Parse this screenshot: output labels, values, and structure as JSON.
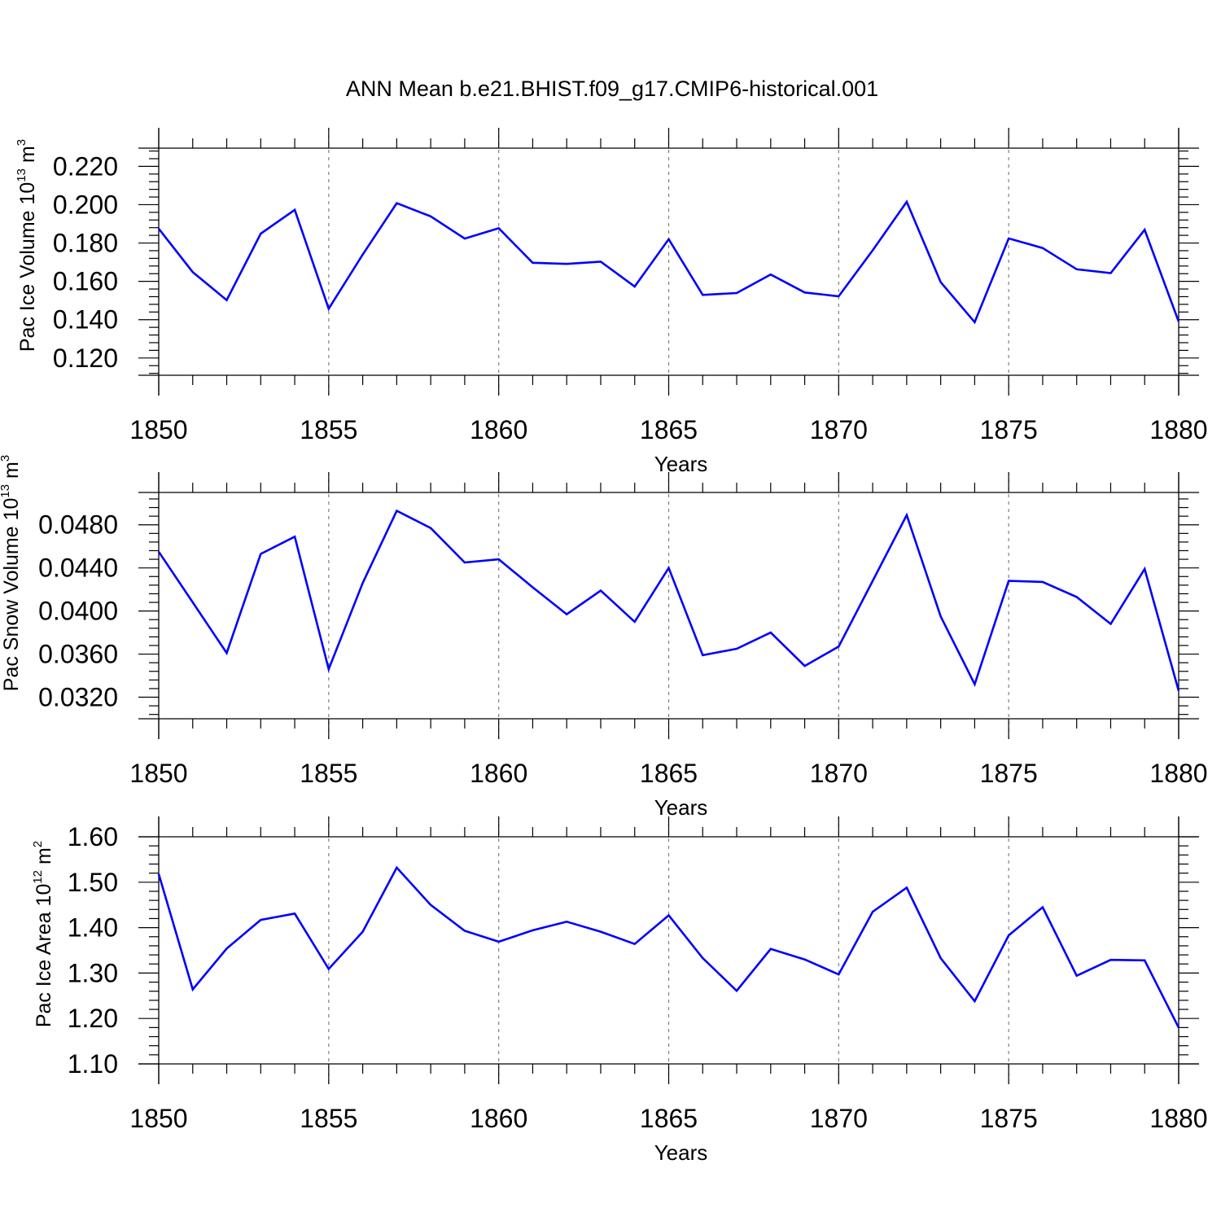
{
  "figure": {
    "title": "ANN Mean b.e21.BHIST.f09_g17.CMIP6-historical.001"
  },
  "colors": {
    "line": "#0000ff",
    "axes": "#000000",
    "grid": "#808080",
    "background": "#ffffff"
  },
  "chart_data": [
    {
      "type": "line",
      "ylabel_main": "Pac Ice Volume 10",
      "ylabel_exp": "13",
      "ylabel_unit": " m",
      "ylabel_unit_exp": "3",
      "xlabel": "Years",
      "xlim": [
        1850,
        1880
      ],
      "ylim": [
        0.111,
        0.2295
      ],
      "x_ticks": [
        1850,
        1855,
        1860,
        1865,
        1870,
        1875,
        1880
      ],
      "x_tick_labels": [
        "1850",
        "1855",
        "1860",
        "1865",
        "1870",
        "1875",
        "1880"
      ],
      "y_ticks": [
        0.12,
        0.14,
        0.16,
        0.18,
        0.2,
        0.22
      ],
      "y_tick_labels": [
        "0.120",
        "0.140",
        "0.160",
        "0.180",
        "0.200",
        "0.220"
      ],
      "grid": "vertical dashed at major x ticks",
      "series": [
        {
          "color": "#0000ff",
          "x": [
            1850,
            1851,
            1852,
            1853,
            1854,
            1855,
            1856,
            1857,
            1858,
            1859,
            1860,
            1861,
            1862,
            1863,
            1864,
            1865,
            1866,
            1867,
            1868,
            1869,
            1870,
            1871,
            1872,
            1873,
            1874,
            1875,
            1876,
            1877,
            1878,
            1879,
            1880
          ],
          "values": [
            0.1875,
            0.1648,
            0.1502,
            0.1849,
            0.1973,
            0.1457,
            0.174,
            0.2008,
            0.1939,
            0.1823,
            0.1877,
            0.1697,
            0.1691,
            0.1703,
            0.1573,
            0.182,
            0.1529,
            0.1539,
            0.1636,
            0.1542,
            0.1522,
            0.1762,
            0.2015,
            0.1596,
            0.1387,
            0.1824,
            0.1774,
            0.1663,
            0.1643,
            0.1869,
            0.139
          ]
        }
      ]
    },
    {
      "type": "line",
      "ylabel_main": "Pac Snow Volume 10",
      "ylabel_exp": "13",
      "ylabel_unit": " m",
      "ylabel_unit_exp": "3",
      "xlabel": "Years",
      "xlim": [
        1850,
        1880
      ],
      "ylim": [
        0.03,
        0.051
      ],
      "x_ticks": [
        1850,
        1855,
        1860,
        1865,
        1870,
        1875,
        1880
      ],
      "x_tick_labels": [
        "1850",
        "1855",
        "1860",
        "1865",
        "1870",
        "1875",
        "1880"
      ],
      "y_ticks": [
        0.032,
        0.036,
        0.04,
        0.044,
        0.048
      ],
      "y_tick_labels": [
        "0.0320",
        "0.0360",
        "0.0400",
        "0.0440",
        "0.0480"
      ],
      "grid": "vertical dashed at major x ticks",
      "series": [
        {
          "color": "#0000ff",
          "x": [
            1850,
            1851,
            1852,
            1853,
            1854,
            1855,
            1856,
            1857,
            1858,
            1859,
            1860,
            1861,
            1862,
            1863,
            1864,
            1865,
            1866,
            1867,
            1868,
            1869,
            1870,
            1871,
            1872,
            1873,
            1874,
            1875,
            1876,
            1877,
            1878,
            1879,
            1880
          ],
          "values": [
            0.0455,
            0.0408,
            0.0361,
            0.0453,
            0.0469,
            0.0346,
            0.0426,
            0.0493,
            0.0477,
            0.0445,
            0.0448,
            0.0422,
            0.0397,
            0.0419,
            0.039,
            0.044,
            0.0359,
            0.0365,
            0.038,
            0.0349,
            0.0367,
            0.0428,
            0.0489,
            0.0395,
            0.0332,
            0.0428,
            0.0427,
            0.0413,
            0.0388,
            0.0439,
            0.0326
          ]
        }
      ]
    },
    {
      "type": "line",
      "ylabel_main": "Pac Ice Area 10",
      "ylabel_exp": "12",
      "ylabel_unit": " m",
      "ylabel_unit_exp": "2",
      "xlabel": "Years",
      "xlim": [
        1850,
        1880
      ],
      "ylim": [
        1.1,
        1.6
      ],
      "x_ticks": [
        1850,
        1855,
        1860,
        1865,
        1870,
        1875,
        1880
      ],
      "x_tick_labels": [
        "1850",
        "1855",
        "1860",
        "1865",
        "1870",
        "1875",
        "1880"
      ],
      "y_ticks": [
        1.1,
        1.2,
        1.3,
        1.4,
        1.5,
        1.6
      ],
      "y_tick_labels": [
        "1.10",
        "1.20",
        "1.30",
        "1.40",
        "1.50",
        "1.60"
      ],
      "grid": "vertical dashed at major x ticks",
      "series": [
        {
          "color": "#0000ff",
          "x": [
            1850,
            1851,
            1852,
            1853,
            1854,
            1855,
            1856,
            1857,
            1858,
            1859,
            1860,
            1861,
            1862,
            1863,
            1864,
            1865,
            1866,
            1867,
            1868,
            1869,
            1870,
            1871,
            1872,
            1873,
            1874,
            1875,
            1876,
            1877,
            1878,
            1879,
            1880
          ],
          "values": [
            1.518,
            1.264,
            1.354,
            1.417,
            1.431,
            1.309,
            1.391,
            1.532,
            1.45,
            1.393,
            1.369,
            1.394,
            1.413,
            1.391,
            1.364,
            1.427,
            1.333,
            1.261,
            1.353,
            1.33,
            1.297,
            1.435,
            1.488,
            1.333,
            1.238,
            1.383,
            1.445,
            1.294,
            1.329,
            1.328,
            1.18
          ]
        }
      ]
    }
  ]
}
